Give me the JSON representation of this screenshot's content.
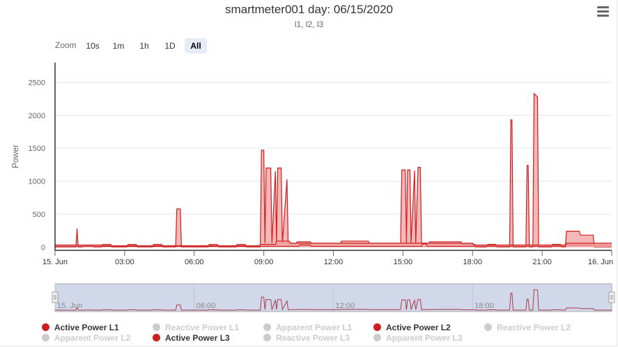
{
  "header": {
    "title": "smartmeter001 day: 06/15/2020",
    "subtitle": "l1, l2, l3"
  },
  "toolbar": {
    "zoom_label": "Zoom",
    "buttons": [
      "10s",
      "1m",
      "1h",
      "1D",
      "All"
    ],
    "active": "All",
    "menu_icon": "hamburger-menu-icon"
  },
  "colors": {
    "series_active": "#cc1f1f",
    "series_fill": "#f0a0a0",
    "navigator_mask": "#d1d8ea",
    "legend_hidden": "#cccccc"
  },
  "chart_data": {
    "type": "area",
    "title": "smartmeter001 day: 06/15/2020",
    "subtitle": "l1, l2, l3",
    "ylabel": "Power",
    "ylim": [
      -50,
      2800
    ],
    "yticks": [
      0,
      500,
      1000,
      1500,
      2000,
      2500
    ],
    "xlim_hours": [
      0,
      24
    ],
    "xticks": [
      {
        "h": 0,
        "label": "15. Jun"
      },
      {
        "h": 3,
        "label": "03:00"
      },
      {
        "h": 6,
        "label": "06:00"
      },
      {
        "h": 9,
        "label": "09:00"
      },
      {
        "h": 12,
        "label": "12:00"
      },
      {
        "h": 15,
        "label": "15:00"
      },
      {
        "h": 18,
        "label": "18:00"
      },
      {
        "h": 21,
        "label": "21:00"
      },
      {
        "h": 24,
        "label": "16. Jun"
      }
    ],
    "navigator_labels": [
      {
        "h": 0,
        "label": "15. Jun"
      },
      {
        "h": 6,
        "label": "06:00"
      },
      {
        "h": 12,
        "label": "12:00"
      },
      {
        "h": 18,
        "label": "18:00"
      }
    ],
    "series": [
      {
        "name": "Active Power L1",
        "visible": true,
        "points": [
          [
            0,
            0
          ],
          [
            0.9,
            0
          ],
          [
            0.95,
            280
          ],
          [
            1.0,
            0
          ],
          [
            1.2,
            0
          ],
          [
            1.25,
            20
          ],
          [
            1.6,
            20
          ],
          [
            1.65,
            0
          ],
          [
            2.0,
            0
          ],
          [
            2.05,
            40
          ],
          [
            2.4,
            40
          ],
          [
            2.45,
            0
          ],
          [
            3.1,
            0
          ],
          [
            3.15,
            40
          ],
          [
            3.5,
            40
          ],
          [
            3.55,
            0
          ],
          [
            4.2,
            0
          ],
          [
            4.25,
            40
          ],
          [
            4.6,
            40
          ],
          [
            4.65,
            0
          ],
          [
            5.2,
            0
          ],
          [
            5.25,
            580
          ],
          [
            5.4,
            580
          ],
          [
            5.45,
            0
          ],
          [
            6.6,
            0
          ],
          [
            6.65,
            40
          ],
          [
            7.0,
            40
          ],
          [
            7.05,
            0
          ],
          [
            7.8,
            0
          ],
          [
            7.85,
            40
          ],
          [
            8.2,
            40
          ],
          [
            8.25,
            0
          ],
          [
            8.85,
            0
          ],
          [
            8.9,
            1470
          ],
          [
            9.0,
            1470
          ],
          [
            9.05,
            60
          ],
          [
            9.1,
            1200
          ],
          [
            9.3,
            1200
          ],
          [
            9.35,
            60
          ],
          [
            9.5,
            1150
          ],
          [
            9.55,
            60
          ],
          [
            9.6,
            1200
          ],
          [
            9.75,
            1200
          ],
          [
            9.8,
            60
          ],
          [
            10.0,
            1030
          ],
          [
            10.05,
            60
          ],
          [
            10.4,
            60
          ],
          [
            10.45,
            80
          ],
          [
            11.0,
            80
          ],
          [
            11.05,
            60
          ],
          [
            12.3,
            60
          ],
          [
            12.35,
            90
          ],
          [
            13.5,
            90
          ],
          [
            13.55,
            60
          ],
          [
            14.9,
            60
          ],
          [
            14.95,
            1170
          ],
          [
            15.1,
            1170
          ],
          [
            15.15,
            60
          ],
          [
            15.2,
            1170
          ],
          [
            15.3,
            1170
          ],
          [
            15.35,
            60
          ],
          [
            15.5,
            1160
          ],
          [
            15.55,
            60
          ],
          [
            15.65,
            1210
          ],
          [
            15.75,
            1210
          ],
          [
            15.8,
            60
          ],
          [
            16.1,
            60
          ],
          [
            16.15,
            80
          ],
          [
            17.5,
            80
          ],
          [
            17.55,
            40
          ],
          [
            18.1,
            40
          ],
          [
            18.15,
            0
          ],
          [
            18.6,
            0
          ],
          [
            18.65,
            40
          ],
          [
            19.0,
            40
          ],
          [
            19.05,
            0
          ],
          [
            19.6,
            0
          ],
          [
            19.65,
            1930
          ],
          [
            19.7,
            1930
          ],
          [
            19.75,
            0
          ],
          [
            20.3,
            0
          ],
          [
            20.35,
            1240
          ],
          [
            20.4,
            1240
          ],
          [
            20.45,
            0
          ],
          [
            20.6,
            0
          ],
          [
            20.65,
            2330
          ],
          [
            20.8,
            2280
          ],
          [
            20.85,
            0
          ],
          [
            21.4,
            0
          ],
          [
            21.45,
            40
          ],
          [
            21.8,
            40
          ],
          [
            21.85,
            0
          ],
          [
            22.0,
            0
          ],
          [
            22.05,
            240
          ],
          [
            22.6,
            240
          ],
          [
            22.65,
            180
          ],
          [
            23.2,
            180
          ],
          [
            23.25,
            0
          ],
          [
            24,
            0
          ]
        ]
      },
      {
        "name": "Reactive Power L1",
        "visible": false
      },
      {
        "name": "Apparent Power L1",
        "visible": false
      },
      {
        "name": "Active Power L2",
        "visible": true,
        "points": [
          [
            0,
            30
          ],
          [
            2.0,
            30
          ],
          [
            2.05,
            20
          ],
          [
            8.8,
            20
          ],
          [
            8.85,
            40
          ],
          [
            9.5,
            40
          ],
          [
            9.55,
            90
          ],
          [
            10.1,
            90
          ],
          [
            10.15,
            60
          ],
          [
            18.0,
            60
          ],
          [
            18.05,
            30
          ],
          [
            24,
            30
          ]
        ]
      },
      {
        "name": "Reactive Power L2",
        "visible": false
      },
      {
        "name": "Apparent Power L2",
        "visible": false
      },
      {
        "name": "Active Power L3",
        "visible": true,
        "points": [
          [
            0,
            10
          ],
          [
            10.5,
            10
          ],
          [
            10.55,
            30
          ],
          [
            11.0,
            30
          ],
          [
            11.05,
            10
          ],
          [
            15.8,
            10
          ],
          [
            15.85,
            50
          ],
          [
            16.0,
            50
          ],
          [
            16.05,
            10
          ],
          [
            22.0,
            10
          ],
          [
            22.05,
            60
          ],
          [
            24,
            60
          ]
        ]
      },
      {
        "name": "Reactive Power L3",
        "visible": false
      },
      {
        "name": "Apparent Power L3",
        "visible": false
      }
    ]
  }
}
